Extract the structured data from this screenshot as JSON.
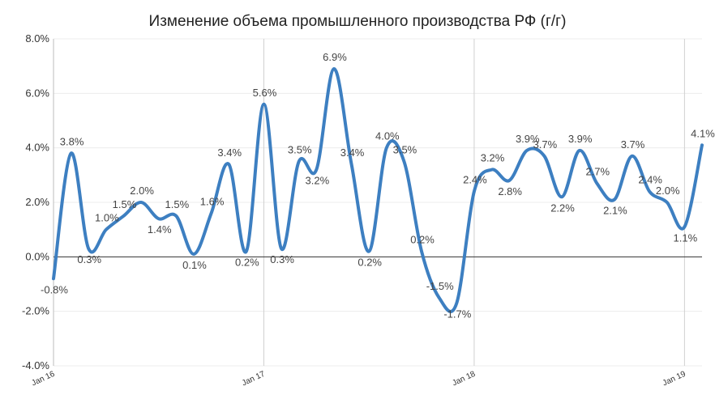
{
  "chart_data": {
    "type": "line",
    "title": "Изменение объема промышленного производства РФ (г/г)",
    "xlabel": "",
    "ylabel": "",
    "ylim": [
      -4,
      8
    ],
    "y_ticks": [
      {
        "value": 8,
        "label": "8.0%"
      },
      {
        "value": 6,
        "label": "6.0%"
      },
      {
        "value": 4,
        "label": "4.0%"
      },
      {
        "value": 2,
        "label": "2.0%"
      },
      {
        "value": 0,
        "label": "0.0%"
      },
      {
        "value": -2,
        "label": "-2.0%"
      },
      {
        "value": -4,
        "label": "-4.0%"
      }
    ],
    "x_ticks": [
      {
        "index": 0,
        "label": "Jan 16"
      },
      {
        "index": 12,
        "label": "Jan 17"
      },
      {
        "index": 24,
        "label": "Jan 18"
      },
      {
        "index": 36,
        "label": "Jan 19"
      }
    ],
    "grid": true,
    "line_color": "#3d7fc1",
    "series": [
      {
        "values": [
          -0.8,
          3.8,
          0.3,
          1.0,
          1.5,
          2.0,
          1.4,
          1.5,
          0.1,
          1.6,
          3.4,
          0.2,
          5.6,
          0.3,
          3.5,
          3.2,
          6.9,
          3.4,
          0.2,
          4.0,
          3.5,
          0.2,
          -1.5,
          -1.7,
          2.4,
          3.2,
          2.8,
          3.9,
          3.7,
          2.2,
          3.9,
          2.7,
          2.1,
          3.7,
          2.4,
          2.0,
          1.1,
          4.1
        ],
        "labels": [
          "-0.8%",
          "3.8%",
          "0.3%",
          "1.0%",
          "1.5%",
          "2.0%",
          "1.4%",
          "1.5%",
          "0.1%",
          "1.6%",
          "3.4%",
          "0.2%",
          "5.6%",
          "0.3%",
          "3.5%",
          "3.2%",
          "6.9%",
          "3.4%",
          "0.2%",
          "4.0%",
          "3.5%",
          "0.2%",
          "-1.5%",
          "-1.7%",
          "2.4%",
          "3.2%",
          "2.8%",
          "3.9%",
          "3.7%",
          "2.2%",
          "3.9%",
          "2.7%",
          "2.1%",
          "3.7%",
          "2.4%",
          "2.0%",
          "1.1%",
          "4.1%"
        ]
      }
    ]
  }
}
